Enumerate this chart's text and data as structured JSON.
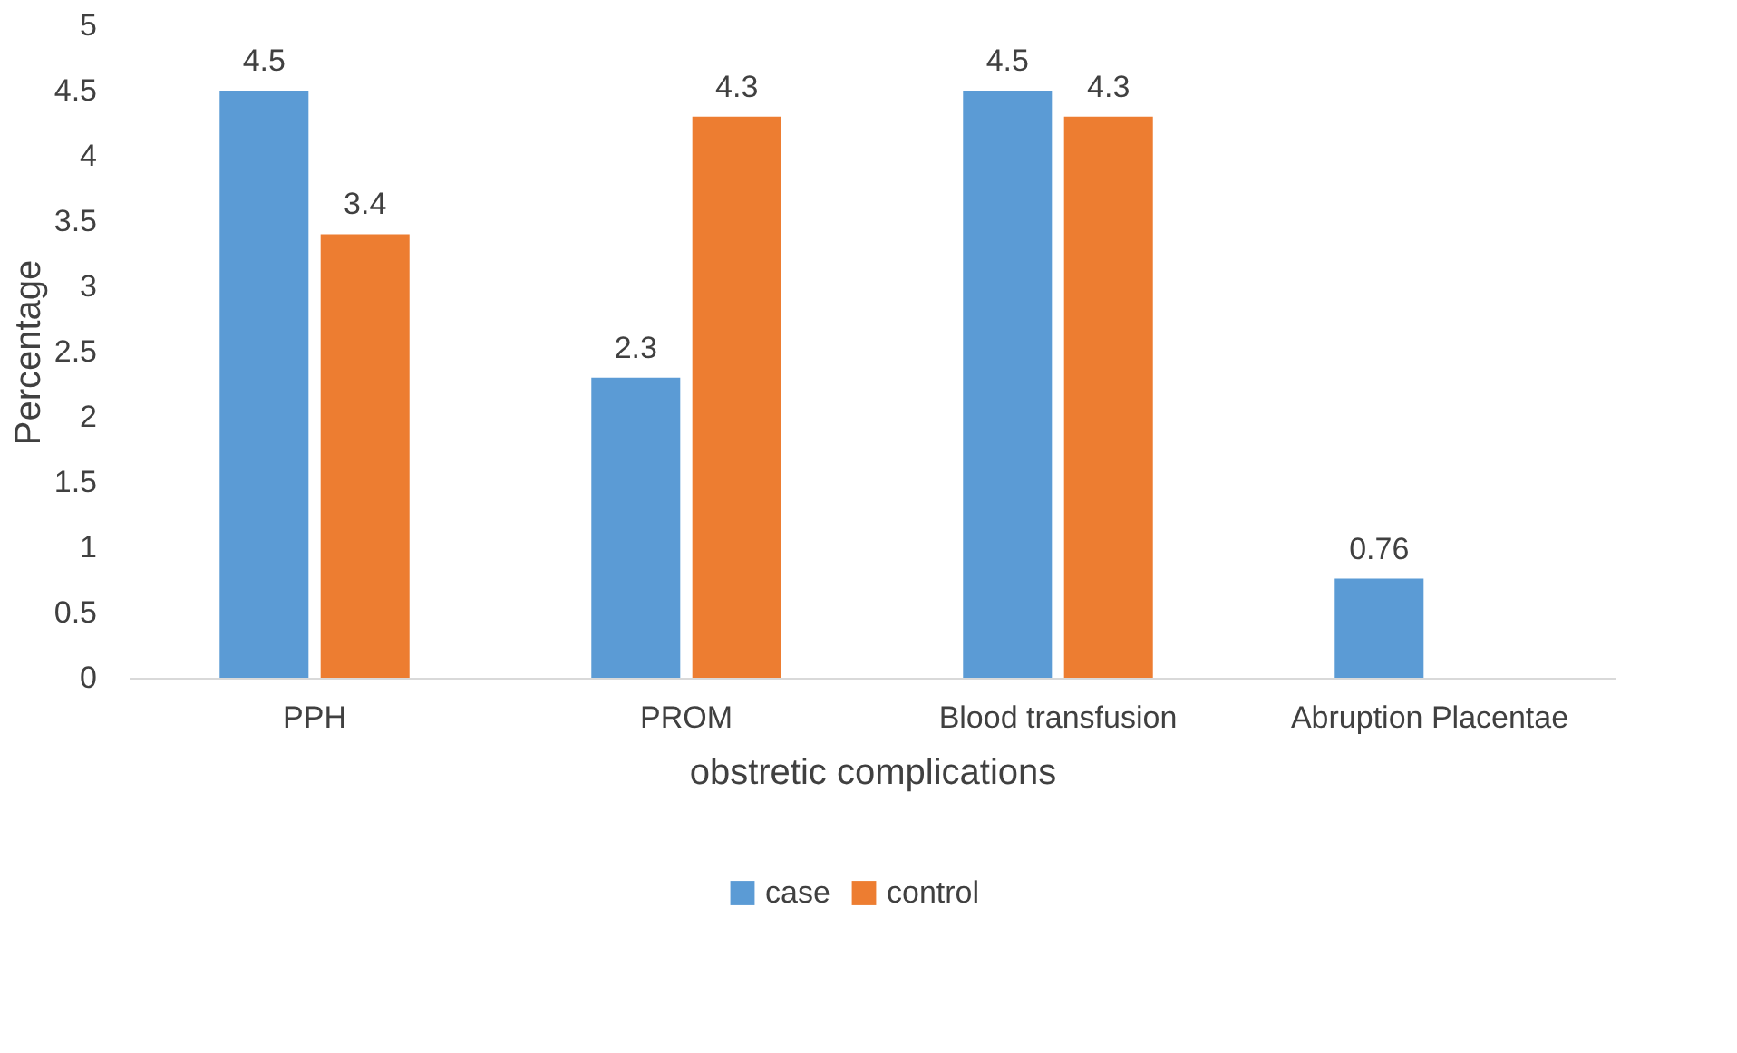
{
  "chart_data": {
    "type": "bar",
    "xlabel": "obstretic complications",
    "ylabel": "Percentage",
    "categories": [
      "PPH",
      "PROM",
      "Blood transfusion",
      "Abruption Placentae"
    ],
    "series": [
      {
        "name": "case",
        "color": "#5b9bd5",
        "values": [
          4.5,
          2.3,
          4.5,
          0.76
        ]
      },
      {
        "name": "control",
        "color": "#ed7d31",
        "values": [
          3.4,
          4.3,
          4.3,
          null
        ]
      }
    ],
    "ylim": [
      0,
      5
    ],
    "yticks": [
      0,
      0.5,
      1,
      1.5,
      2,
      2.5,
      3,
      3.5,
      4,
      4.5,
      5
    ],
    "grid": false,
    "legend": "bottom",
    "data_labels": true
  }
}
